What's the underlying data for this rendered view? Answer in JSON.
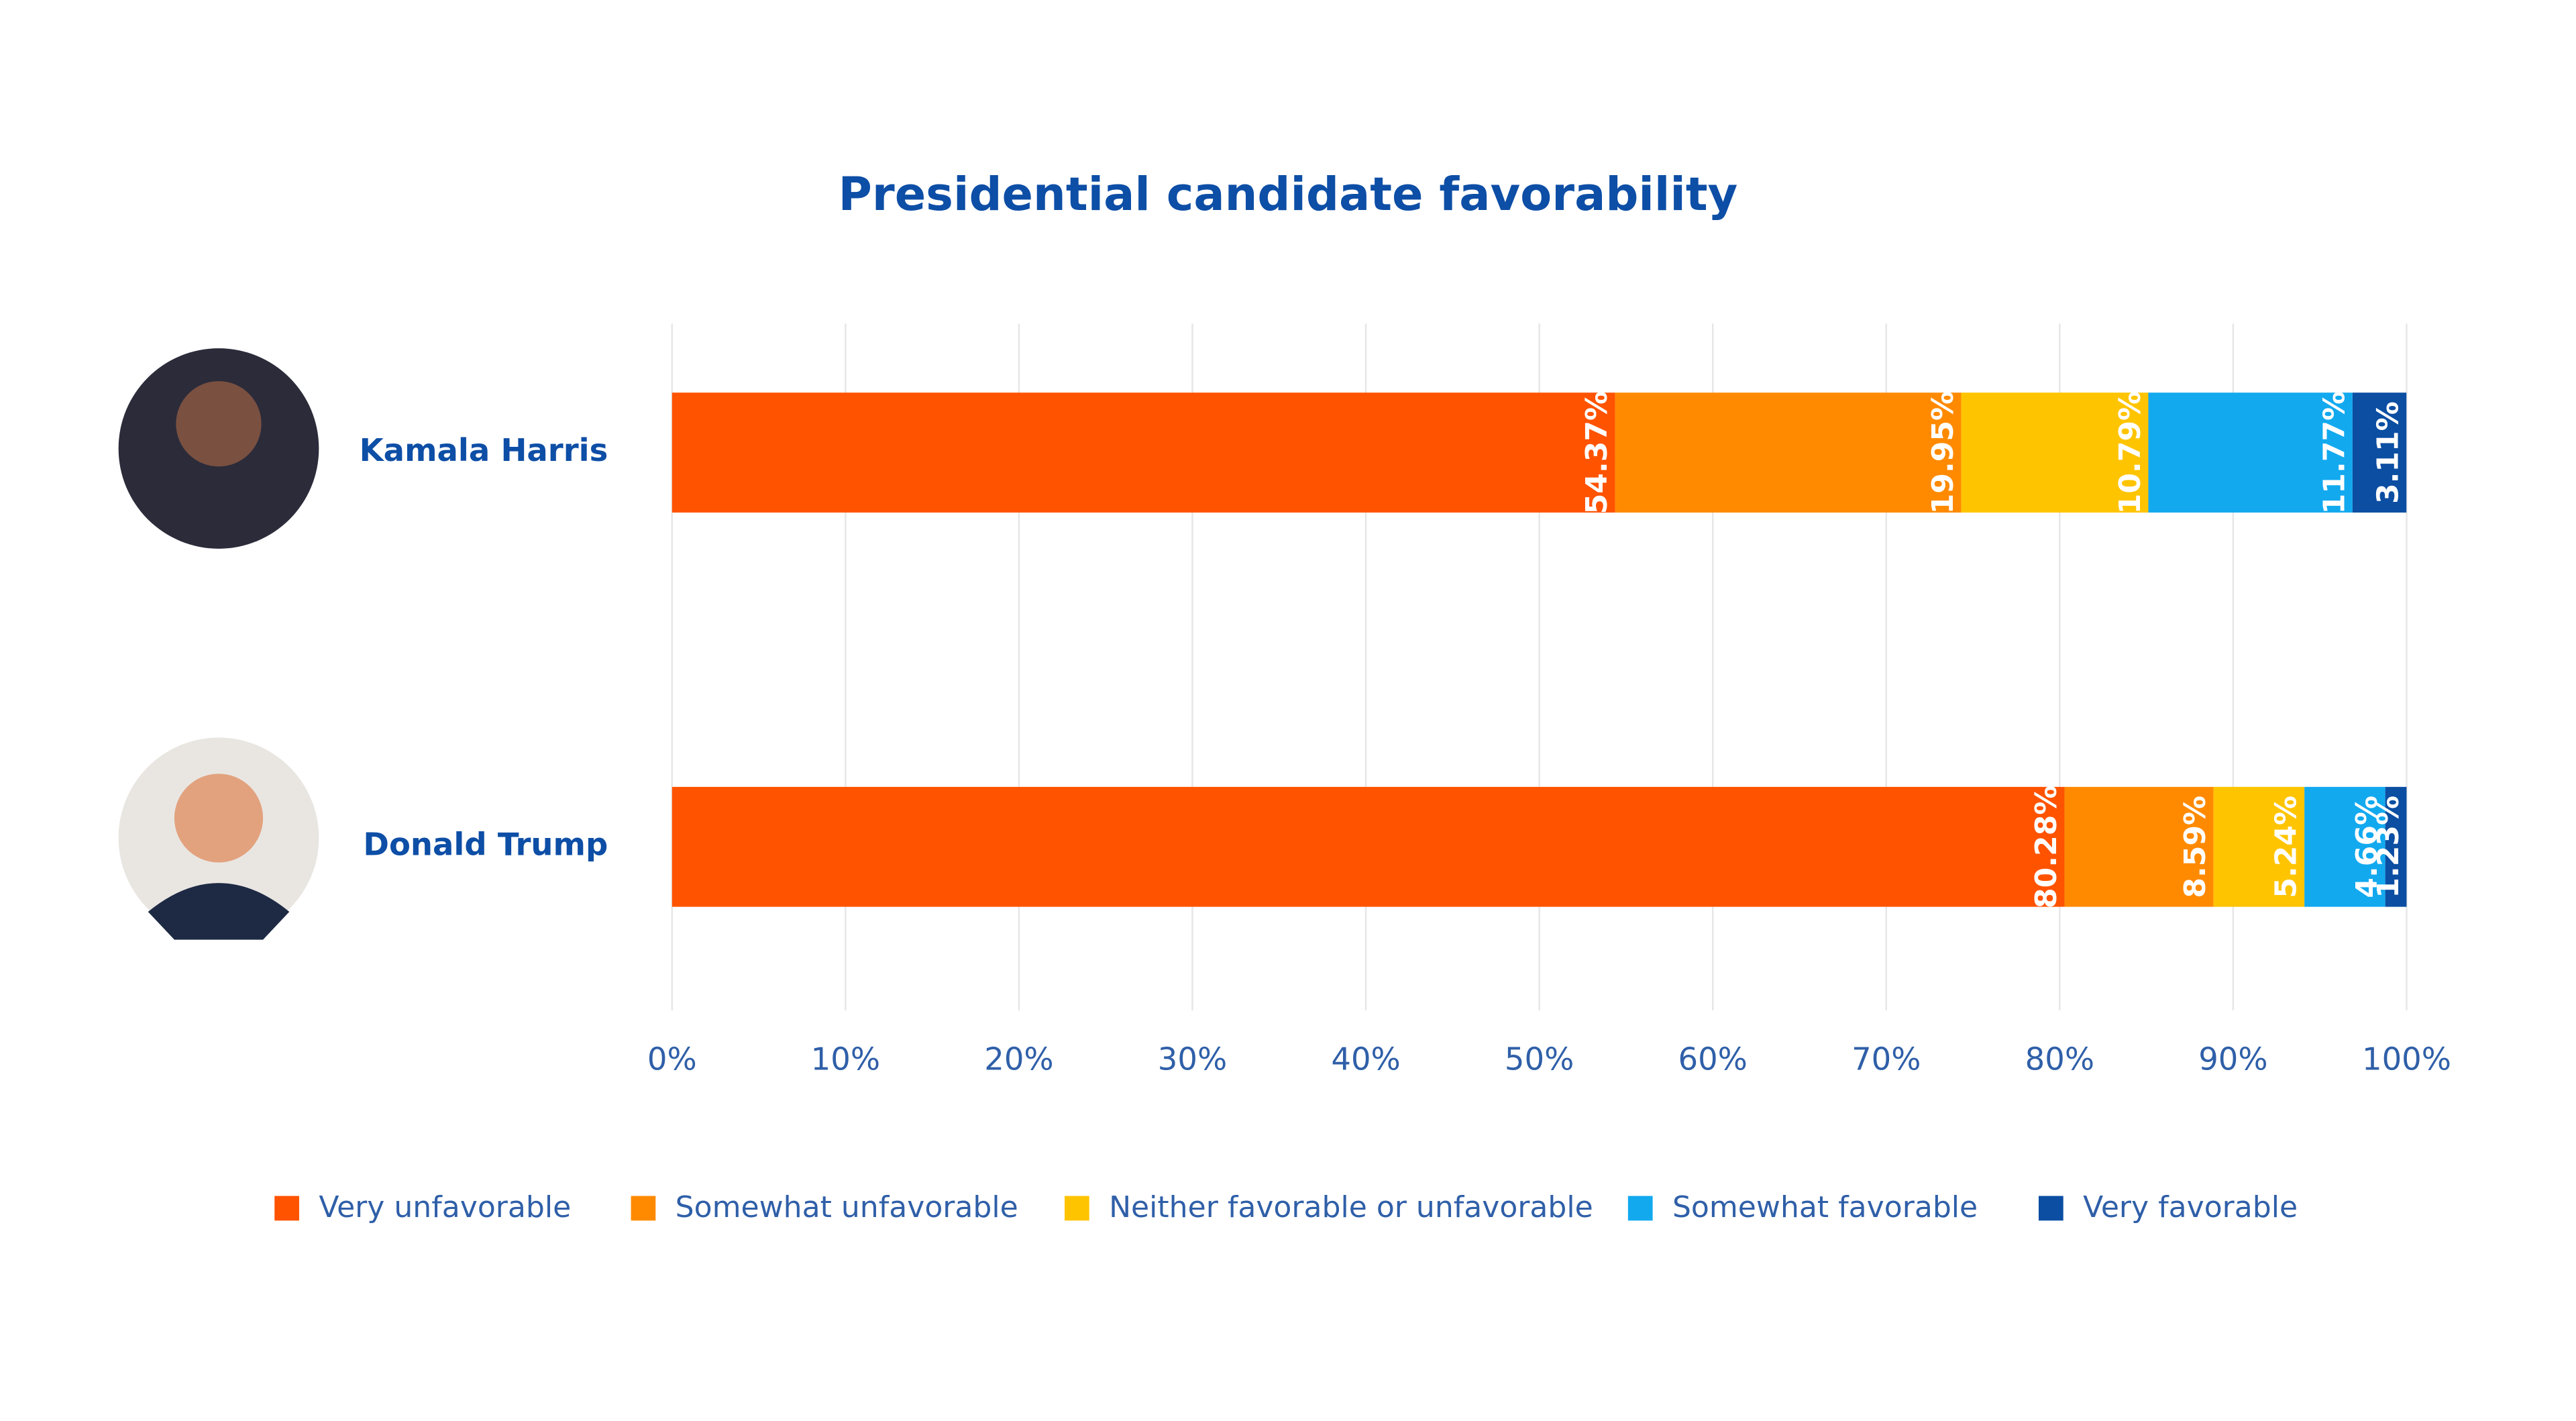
{
  "chart_data": {
    "type": "stacked-bar-horizontal",
    "title": "Presidential candidate favorability",
    "categories": [
      "Kamala Harris",
      "Donald Trump"
    ],
    "series": [
      {
        "name": "Very unfavorable",
        "color": "#ff5300",
        "values": [
          54.37,
          80.28
        ],
        "value_labels": [
          "54.37%",
          "80.28%"
        ]
      },
      {
        "name": "Somewhat unfavorable",
        "color": "#ff8a00",
        "values": [
          19.95,
          8.59
        ],
        "value_labels": [
          "19.95%",
          "8.59%"
        ]
      },
      {
        "name": "Neither favorable or unfavorable",
        "color": "#ffc400",
        "values": [
          10.79,
          5.24
        ],
        "value_labels": [
          "10.79%",
          "5.24%"
        ]
      },
      {
        "name": "Somewhat favorable",
        "color": "#12a9ef",
        "values": [
          11.77,
          4.66
        ],
        "value_labels": [
          "11.77%",
          "4.66%"
        ]
      },
      {
        "name": "Very favorable",
        "color": "#0b4ea2",
        "values": [
          3.11,
          1.23
        ],
        "value_labels": [
          "3.11%",
          "1.23%"
        ]
      }
    ],
    "xlim": [
      0,
      100
    ],
    "xticks": [
      {
        "value": 0,
        "label": "0%"
      },
      {
        "value": 10,
        "label": "10%"
      },
      {
        "value": 20,
        "label": "20%"
      },
      {
        "value": 30,
        "label": "30%"
      },
      {
        "value": 40,
        "label": "40%"
      },
      {
        "value": 50,
        "label": "50%"
      },
      {
        "value": 60,
        "label": "60%"
      },
      {
        "value": 70,
        "label": "70%"
      },
      {
        "value": 80,
        "label": "80%"
      },
      {
        "value": 90,
        "label": "90%"
      },
      {
        "value": 100,
        "label": "100%"
      }
    ],
    "grid": true,
    "legend": "bottom"
  }
}
